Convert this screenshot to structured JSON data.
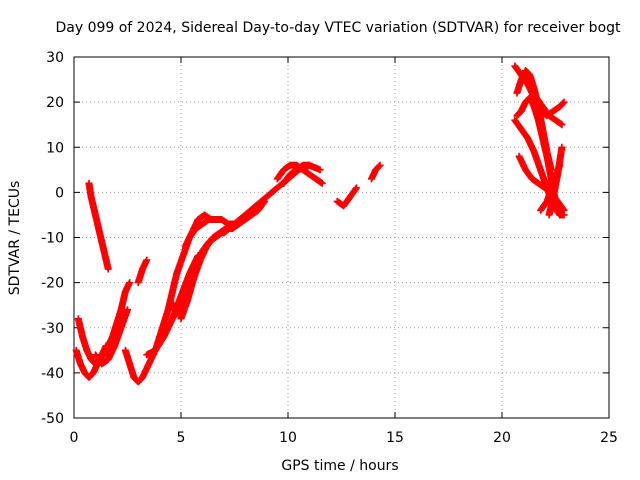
{
  "chart_data": {
    "type": "scatter",
    "title": "Day 099 of 2024, Sidereal Day-to-day VTEC variation (SDTVAR) for receiver bogt",
    "xlabel": "GPS time / hours",
    "ylabel": "SDTVAR / TECUs",
    "xlim": [
      0,
      25
    ],
    "ylim": [
      -50,
      30
    ],
    "xticks": [
      0,
      5,
      10,
      15,
      20,
      25
    ],
    "yticks": [
      -50,
      -40,
      -30,
      -20,
      -10,
      0,
      10,
      20,
      30
    ],
    "grid": true,
    "marker": "+",
    "color": "#ff0000",
    "series": [
      {
        "name": "s1",
        "x": [
          0.1,
          0.3,
          0.5,
          0.7,
          0.9,
          1.1,
          1.3,
          1.5
        ],
        "y": [
          -35,
          -38,
          -40,
          -41,
          -40,
          -38,
          -36,
          -34
        ]
      },
      {
        "name": "s2",
        "x": [
          0.2,
          0.4,
          0.6,
          0.8,
          1.0,
          1.2,
          1.4,
          1.6,
          1.8,
          2.0,
          2.2,
          2.4,
          2.6
        ],
        "y": [
          -28,
          -32,
          -35,
          -37,
          -38,
          -37,
          -36,
          -34,
          -32,
          -29,
          -26,
          -22,
          -20
        ]
      },
      {
        "name": "s3",
        "x": [
          0.7,
          0.8,
          0.9,
          1.0,
          1.1,
          1.2,
          1.3,
          1.4,
          1.5,
          1.6
        ],
        "y": [
          2,
          -1,
          -3,
          -5,
          -7,
          -9,
          -11,
          -13,
          -15,
          -17
        ]
      },
      {
        "name": "s4",
        "x": [
          1.0,
          1.3,
          1.6,
          1.9,
          2.2,
          2.5
        ],
        "y": [
          -36,
          -38,
          -37,
          -34,
          -30,
          -26
        ]
      },
      {
        "name": "s5",
        "x": [
          2.4,
          2.6,
          2.8,
          3.0,
          3.2,
          3.4,
          3.6,
          3.8,
          4.0,
          4.2,
          4.4,
          4.6,
          4.8
        ],
        "y": [
          -35,
          -38,
          -41,
          -42,
          -41,
          -39,
          -37,
          -35,
          -32,
          -29,
          -26,
          -22,
          -18
        ]
      },
      {
        "name": "s6",
        "x": [
          3.0,
          3.2,
          3.4
        ],
        "y": [
          -20,
          -17,
          -15
        ]
      },
      {
        "name": "s7",
        "x": [
          3.4,
          3.8,
          4.2,
          4.6,
          5.0,
          5.4,
          5.8
        ],
        "y": [
          -36,
          -35,
          -32,
          -28,
          -23,
          -18,
          -14
        ]
      },
      {
        "name": "s8",
        "x": [
          4.5,
          4.8,
          5.1,
          5.4,
          5.7,
          6.0,
          6.3,
          6.6,
          6.9,
          7.2,
          7.5,
          7.8,
          8.1,
          8.4
        ],
        "y": [
          -24,
          -27,
          -25,
          -20,
          -16,
          -13,
          -11,
          -10,
          -9,
          -8,
          -7,
          -6,
          -5,
          -4
        ]
      },
      {
        "name": "s9",
        "x": [
          4.8,
          5.1,
          5.4,
          5.7,
          6.0,
          6.3,
          6.6,
          6.9,
          7.2,
          7.5,
          7.8,
          8.1,
          8.4,
          8.7
        ],
        "y": [
          -18,
          -14,
          -10,
          -8,
          -7,
          -6,
          -6,
          -6,
          -7,
          -7,
          -6,
          -5,
          -4,
          -3
        ]
      },
      {
        "name": "s10",
        "x": [
          5.0,
          5.3,
          5.6,
          5.9,
          6.2,
          6.5,
          6.8,
          7.1,
          7.4,
          7.7,
          8.0,
          8.3,
          8.6,
          8.9
        ],
        "y": [
          -28,
          -24,
          -19,
          -15,
          -12,
          -10,
          -9,
          -8,
          -8,
          -7,
          -6,
          -5,
          -4,
          -2
        ]
      },
      {
        "name": "s11",
        "x": [
          5.2,
          5.5,
          5.8,
          6.1,
          6.4
        ],
        "y": [
          -12,
          -9,
          -6,
          -5,
          -6
        ]
      },
      {
        "name": "s12",
        "x": [
          7.0,
          7.5,
          8.0,
          8.5,
          9.0,
          9.5,
          10.0,
          10.5,
          11.0,
          11.5
        ],
        "y": [
          -9,
          -7,
          -5,
          -3,
          -1,
          1,
          3,
          5,
          6,
          5
        ]
      },
      {
        "name": "s13",
        "x": [
          9.5,
          9.8,
          10.1,
          10.4,
          10.7,
          11.0,
          11.3,
          11.6
        ],
        "y": [
          3,
          5,
          6,
          6,
          5,
          4,
          3,
          2
        ]
      },
      {
        "name": "s14",
        "x": [
          9.8,
          10.1,
          10.4,
          10.7,
          11.0
        ],
        "y": [
          2,
          4,
          5,
          6,
          6
        ]
      },
      {
        "name": "s15",
        "x": [
          12.3,
          12.6,
          12.9,
          13.2
        ],
        "y": [
          -2,
          -3,
          -1,
          1
        ]
      },
      {
        "name": "s16",
        "x": [
          13.9,
          14.1,
          14.3
        ],
        "y": [
          3,
          5,
          6
        ]
      },
      {
        "name": "s17",
        "x": [
          20.6,
          20.9,
          21.2,
          21.5,
          21.8,
          22.1,
          22.4,
          22.7,
          22.9
        ],
        "y": [
          28,
          26,
          24,
          21,
          18,
          17,
          18,
          19,
          20
        ]
      },
      {
        "name": "s18",
        "x": [
          20.7,
          20.9,
          21.1,
          21.3,
          21.5,
          21.7,
          21.9,
          22.1,
          22.3,
          22.5,
          22.7
        ],
        "y": [
          17,
          18,
          20,
          21,
          19,
          16,
          12,
          8,
          3,
          -2,
          -5
        ]
      },
      {
        "name": "s19",
        "x": [
          20.7,
          20.9,
          21.1,
          21.3,
          21.5,
          21.7,
          21.9,
          22.1,
          22.3
        ],
        "y": [
          22,
          25,
          27,
          26,
          23,
          19,
          14,
          9,
          5
        ]
      },
      {
        "name": "s20",
        "x": [
          20.8,
          21.1,
          21.4,
          21.7,
          22.0,
          22.3,
          22.6,
          22.9
        ],
        "y": [
          8,
          5,
          3,
          2,
          1,
          0,
          -2,
          -4
        ]
      },
      {
        "name": "s21",
        "x": [
          20.6,
          20.9,
          21.2,
          21.5,
          21.8,
          22.1,
          22.4,
          22.7,
          22.9
        ],
        "y": [
          16,
          14,
          12,
          9,
          5,
          1,
          -3,
          -5,
          -5
        ]
      },
      {
        "name": "s22",
        "x": [
          21.0,
          21.3,
          21.6,
          21.9,
          22.2,
          22.5,
          22.8
        ],
        "y": [
          26,
          24,
          21,
          19,
          17,
          16,
          15
        ]
      },
      {
        "name": "s23",
        "x": [
          21.8,
          22.1,
          22.4,
          22.7
        ],
        "y": [
          -4,
          -2,
          2,
          6
        ]
      },
      {
        "name": "s24",
        "x": [
          22.2,
          22.4,
          22.6,
          22.8
        ],
        "y": [
          -5,
          -1,
          4,
          10
        ]
      }
    ]
  }
}
